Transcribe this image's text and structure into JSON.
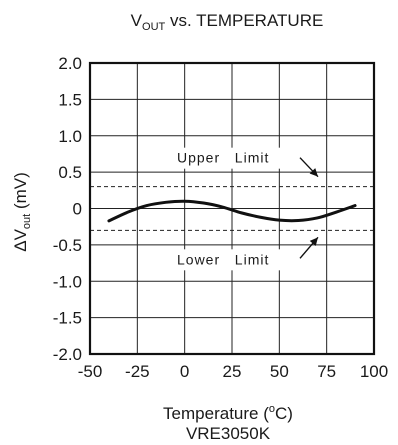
{
  "chart_data": {
    "type": "line",
    "title": {
      "base": "V",
      "sub": "OUT",
      "rest": " vs. TEMPERATURE"
    },
    "ylabel": {
      "prefix": "ΔV",
      "sub": "out",
      "suffix": " (mV)"
    },
    "xlabel": {
      "text": "Temperature (",
      "sup": "o",
      "after": "C)"
    },
    "caption": "VRE3050K",
    "xlim": [
      -50,
      100
    ],
    "ylim": [
      -2.0,
      2.0
    ],
    "x_ticks": [
      -50,
      -25,
      0,
      25,
      50,
      75,
      100
    ],
    "y_ticks": [
      2.0,
      1.5,
      1.0,
      0.5,
      0,
      -0.5,
      -1.0,
      -1.5,
      -2.0
    ],
    "x_tick_labels": [
      "-50",
      "-25",
      "0",
      "25",
      "50",
      "75",
      "100"
    ],
    "y_tick_labels": [
      "2.0",
      "1.5",
      "1.0",
      "0.5",
      "0",
      "-0.5",
      "-1.0",
      "-1.5",
      "-2.0"
    ],
    "grid": true,
    "series": [
      {
        "x": [
          -40,
          -30,
          -20,
          -10,
          0,
          10,
          20,
          30,
          40,
          50,
          60,
          70,
          80,
          90
        ],
        "y": [
          -0.17,
          -0.05,
          0.04,
          0.085,
          0.1,
          0.075,
          0.02,
          -0.06,
          -0.12,
          -0.16,
          -0.165,
          -0.13,
          -0.05,
          0.04
        ],
        "color": "#111111"
      }
    ],
    "reference_lines": [
      {
        "label": "Upper   Limit",
        "y": 0.3
      },
      {
        "label": "Lower   Limit",
        "y": -0.3
      }
    ]
  }
}
